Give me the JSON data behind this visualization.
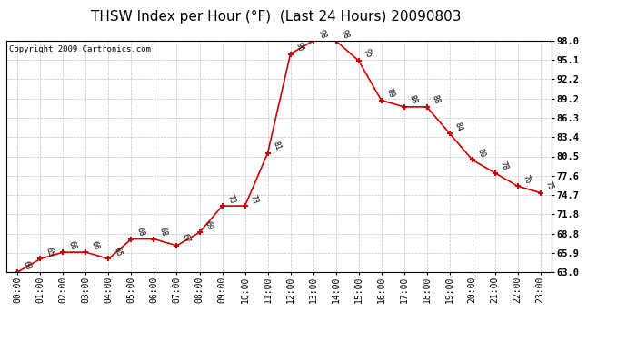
{
  "title": "THSW Index per Hour (°F)  (Last 24 Hours) 20090803",
  "copyright": "Copyright 2009 Cartronics.com",
  "hours": [
    "00:00",
    "01:00",
    "02:00",
    "03:00",
    "04:00",
    "05:00",
    "06:00",
    "07:00",
    "08:00",
    "09:00",
    "10:00",
    "11:00",
    "12:00",
    "13:00",
    "14:00",
    "15:00",
    "16:00",
    "17:00",
    "18:00",
    "19:00",
    "20:00",
    "21:00",
    "22:00",
    "23:00"
  ],
  "values": [
    63,
    65,
    66,
    66,
    65,
    68,
    68,
    67,
    69,
    73,
    73,
    81,
    96,
    98,
    98,
    95,
    89,
    88,
    88,
    84,
    80,
    78,
    76,
    75
  ],
  "ylim_min": 63.0,
  "ylim_max": 98.0,
  "yticks": [
    63.0,
    65.9,
    68.8,
    71.8,
    74.7,
    77.6,
    80.5,
    83.4,
    86.3,
    89.2,
    92.2,
    95.1,
    98.0
  ],
  "ytick_labels": [
    "63.0",
    "65.9",
    "68.8",
    "71.8",
    "74.7",
    "77.6",
    "80.5",
    "83.4",
    "86.3",
    "89.2",
    "92.2",
    "95.1",
    "98.0"
  ],
  "line_color": "#cc0000",
  "marker_color": "#cc0000",
  "bg_color": "#ffffff",
  "grid_color": "#c0c0c0",
  "title_fontsize": 11,
  "copyright_fontsize": 6.5,
  "annotation_fontsize": 6,
  "tick_fontsize": 7,
  "ytick_fontsize": 7.5
}
